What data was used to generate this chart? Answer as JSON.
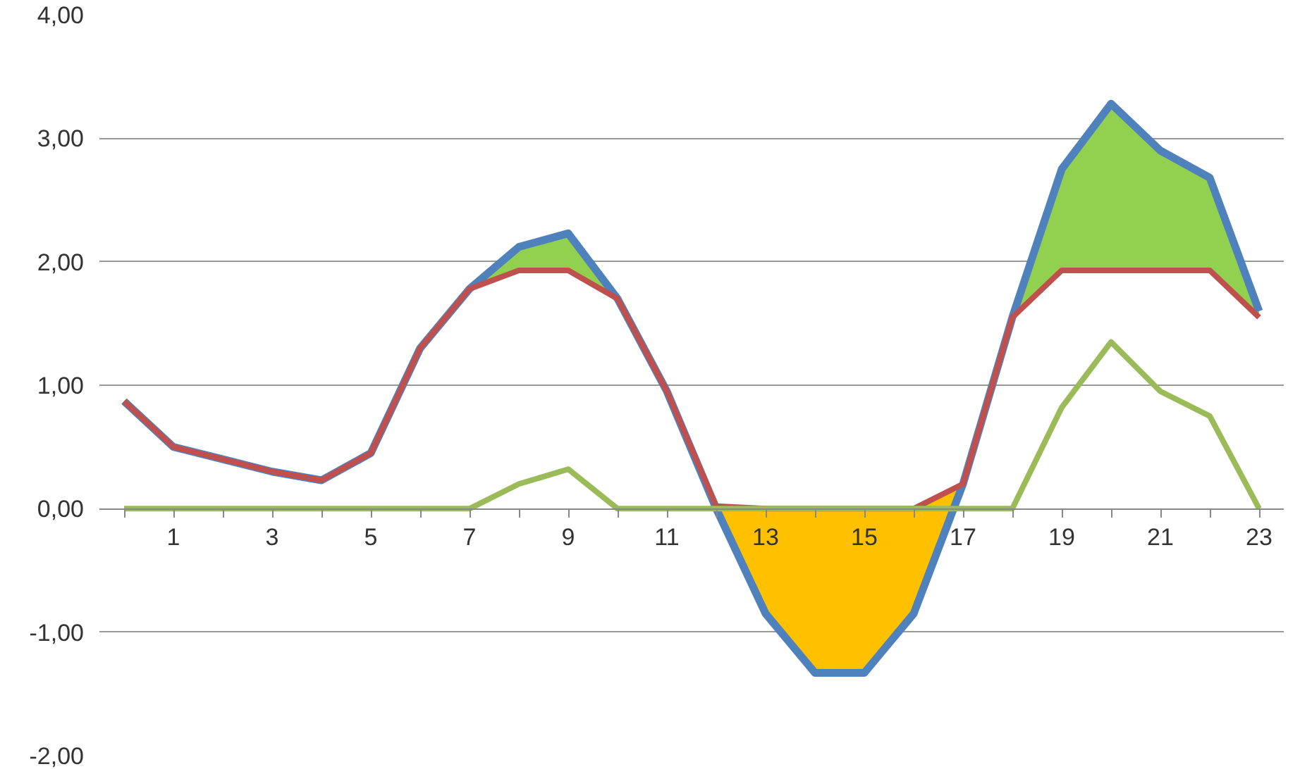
{
  "chart_data": {
    "type": "line",
    "x": [
      0,
      1,
      2,
      3,
      4,
      5,
      6,
      7,
      8,
      9,
      10,
      11,
      12,
      13,
      14,
      15,
      16,
      17,
      18,
      19,
      20,
      21,
      22,
      23
    ],
    "series": [
      {
        "type": "area",
        "color": "#92d050",
        "x": [
          7,
          8,
          9,
          10
        ],
        "values": [
          1.78,
          2.12,
          2.23,
          1.7
        ]
      },
      {
        "type": "area",
        "color": "#92d050",
        "x": [
          18,
          19,
          20,
          21,
          22,
          23
        ],
        "values": [
          1.55,
          2.75,
          3.28,
          2.9,
          2.68,
          1.6
        ]
      },
      {
        "type": "area",
        "color": "#ffc000",
        "x": [
          12,
          13,
          14,
          15,
          16,
          17
        ],
        "values": [
          0.0,
          -0.85,
          -1.33,
          -1.33,
          -0.85,
          0.2
        ]
      },
      {
        "color": "#4f81bd",
        "values": [
          0.87,
          0.5,
          0.4,
          0.3,
          0.23,
          0.45,
          1.3,
          1.78,
          2.12,
          2.23,
          1.7,
          0.95,
          0.0,
          -0.85,
          -1.33,
          -1.33,
          -0.85,
          0.2,
          1.55,
          2.75,
          3.28,
          2.9,
          2.68,
          1.6
        ]
      },
      {
        "color": "#c0504d",
        "values": [
          0.87,
          0.5,
          0.4,
          0.3,
          0.23,
          0.45,
          1.3,
          1.78,
          1.93,
          1.93,
          1.7,
          0.95,
          0.02,
          0.0,
          0.0,
          0.0,
          0.0,
          0.2,
          1.55,
          1.93,
          1.93,
          1.93,
          1.93,
          1.55
        ]
      },
      {
        "color": "#9bbb59",
        "values": [
          0,
          0,
          0,
          0,
          0,
          0,
          0,
          0,
          0.2,
          0.32,
          0,
          0,
          0,
          0,
          0,
          0,
          0,
          0,
          0,
          0.82,
          1.35,
          0.95,
          0.75,
          0
        ]
      }
    ],
    "xlim": [
      -0.5,
      23.5
    ],
    "xticks": [
      {
        "value": 0,
        "label": null
      },
      {
        "value": 1,
        "label": "1"
      },
      {
        "value": 2,
        "label": null
      },
      {
        "value": 3,
        "label": "3"
      },
      {
        "value": 4,
        "label": null
      },
      {
        "value": 5,
        "label": "5"
      },
      {
        "value": 6,
        "label": null
      },
      {
        "value": 7,
        "label": "7"
      },
      {
        "value": 8,
        "label": null
      },
      {
        "value": 9,
        "label": "9"
      },
      {
        "value": 10,
        "label": null
      },
      {
        "value": 11,
        "label": "11"
      },
      {
        "value": 12,
        "label": null
      },
      {
        "value": 13,
        "label": "13"
      },
      {
        "value": 14,
        "label": null
      },
      {
        "value": 15,
        "label": "15"
      },
      {
        "value": 16,
        "label": null
      },
      {
        "value": 17,
        "label": "17"
      },
      {
        "value": 18,
        "label": null
      },
      {
        "value": 19,
        "label": "19"
      },
      {
        "value": 20,
        "label": null
      },
      {
        "value": 21,
        "label": "21"
      },
      {
        "value": 22,
        "label": null
      },
      {
        "value": 23,
        "label": "23"
      }
    ],
    "ylim": [
      -2,
      4
    ],
    "yticks": [
      {
        "value": -2,
        "label": "-2,00"
      },
      {
        "value": -1,
        "label": "-1,00"
      },
      {
        "value": 0,
        "label": "0,00"
      },
      {
        "value": 1,
        "label": "1,00"
      },
      {
        "value": 2,
        "label": "2,00"
      },
      {
        "value": 3,
        "label": "3,00"
      },
      {
        "value": 4,
        "label": "4,00"
      }
    ],
    "grid": "y",
    "line_style": "solid",
    "marker": "none"
  }
}
